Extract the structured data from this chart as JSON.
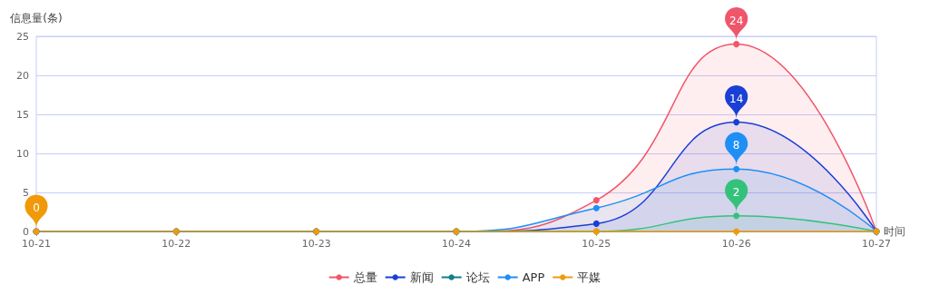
{
  "chart_data": {
    "type": "line",
    "ylabel": "信息量(条)",
    "xlabel": "时间",
    "categories": [
      "10-21",
      "10-22",
      "10-23",
      "10-24",
      "10-25",
      "10-26",
      "10-27"
    ],
    "series": [
      {
        "name": "总量",
        "type": "area",
        "color": "#f0566a",
        "values": [
          0,
          0,
          0,
          0,
          4,
          24,
          0
        ],
        "value_labels": [
          null,
          null,
          null,
          null,
          null,
          "24",
          null
        ]
      },
      {
        "name": "新闻",
        "type": "area",
        "color": "#1a3fd6",
        "values": [
          0,
          0,
          0,
          0,
          1,
          14,
          0
        ],
        "value_labels": [
          null,
          null,
          null,
          null,
          null,
          "14",
          null
        ]
      },
      {
        "name": "论坛",
        "color": "#0f7f88",
        "values": [
          null,
          null,
          null,
          null,
          null,
          null,
          null
        ]
      },
      {
        "type": "area",
        "color": "#34c27a",
        "values": [
          0,
          0,
          0,
          0,
          0,
          2,
          0
        ],
        "value_labels": [
          null,
          null,
          null,
          null,
          null,
          "2",
          null
        ]
      },
      {
        "name": "APP",
        "type": "area",
        "color": "#1e8ff5",
        "values": [
          0,
          0,
          0,
          0,
          3,
          8,
          0
        ],
        "value_labels": [
          null,
          null,
          null,
          null,
          null,
          "8",
          null
        ]
      },
      {
        "name": "平媒",
        "color": "#f09a0a",
        "values": [
          0,
          0,
          0,
          0,
          0,
          0,
          0
        ],
        "value_labels": [
          "0",
          null,
          null,
          null,
          null,
          null,
          null
        ]
      }
    ],
    "ylim": [
      0,
      25
    ],
    "yticks": [
      0,
      5,
      10,
      15,
      20,
      25
    ],
    "grid": "y",
    "legend": "bottom",
    "marker": "circle",
    "line_style": "solid"
  }
}
